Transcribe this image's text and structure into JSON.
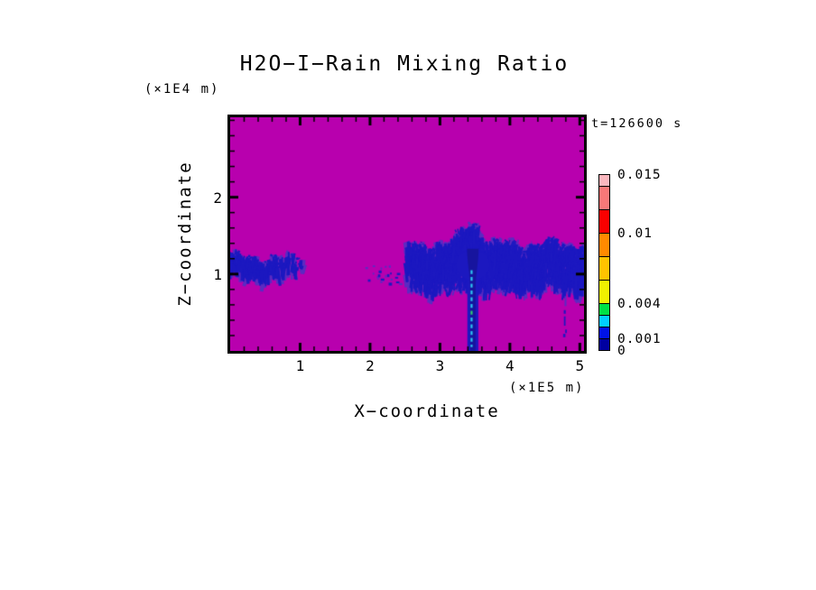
{
  "title": "H2O−I−Rain Mixing Ratio",
  "time_label": "t=126600 s",
  "axes": {
    "x": {
      "title": "X−coordinate",
      "unit": "(×1E5 m)",
      "min": 0,
      "max": 5.06,
      "major_ticks": [
        {
          "value": 1,
          "label": "1"
        },
        {
          "value": 2,
          "label": "2"
        },
        {
          "value": 3,
          "label": "3"
        },
        {
          "value": 4,
          "label": "4"
        },
        {
          "value": 5,
          "label": "5"
        }
      ],
      "minor_step": 0.2
    },
    "z": {
      "title": "Z−coordinate",
      "unit": "(×1E4 m)",
      "min": 0,
      "max": 3.04,
      "major_ticks": [
        {
          "value": 1,
          "label": "1"
        },
        {
          "value": 2,
          "label": "2"
        }
      ],
      "minor_step": 0.2
    }
  },
  "colorbar": {
    "min": 0,
    "max": 0.015,
    "levels": [
      0,
      0.001,
      0.002,
      0.003,
      0.004,
      0.006,
      0.008,
      0.01,
      0.012,
      0.014,
      0.015
    ],
    "colors_bottom_to_top": [
      "#0000A0",
      "#0013E8",
      "#00CFFF",
      "#00E045",
      "#F0F000",
      "#FFC300",
      "#FF8A00",
      "#FA0000",
      "#F87878",
      "#FBB7BE"
    ],
    "labels": [
      {
        "value": 0.015,
        "text": "0.015"
      },
      {
        "value": 0.01,
        "text": "0.01"
      },
      {
        "value": 0.004,
        "text": "0.004"
      },
      {
        "value": 0.001,
        "text": "0.001"
      },
      {
        "value": 0,
        "text": "0"
      }
    ]
  },
  "chart_data": {
    "type": "heatmap",
    "title": "H2O−I−Rain Mixing Ratio",
    "xlabel": "X−coordinate (×1E5 m)",
    "ylabel": "Z−coordinate (×1E4 m)",
    "time": "t=126600 s",
    "x_range": [
      0,
      5.06
    ],
    "z_range": [
      0,
      3.04
    ],
    "value_range": [
      0,
      0.015
    ],
    "levels": [
      0,
      0.001,
      0.002,
      0.003,
      0.004,
      0.006,
      0.008,
      0.01,
      0.012,
      0.014,
      0.015
    ],
    "level_colors": [
      "#0000A0",
      "#0013E8",
      "#00CFFF",
      "#00E045",
      "#F0F000",
      "#FFC300",
      "#FF8A00",
      "#FA0000",
      "#F87878",
      "#FBB7BE"
    ],
    "colors": {
      "background": "#B800AE",
      "blend": "#5B2BC2",
      "blue": "#1C18C0",
      "deep": "#17149E",
      "cyan": "#2CC6F0",
      "green": "#2FD070",
      "frame": "#000000"
    },
    "description": "Rain mixing ratio is ~0 (magenta background) everywhere except feathery bands near z≈1×1E4 m: a patch at x≈0–1×1E5 m, sparse specks at x≈1.9–2.5, a broad ragged band from x≈2.5 to the right edge with values ≲0.001–0.002 (blue), a dense precipitation shaft at x≈3.47 reaching the surface whose core holds ~0.002–0.003 (cyan dashes, one green ~0.003–0.004), and a thin broken virga streak at x≈4.79.",
    "features": [
      {
        "id": "left-feather-patch",
        "kind": "band",
        "seed": 7,
        "x0": 0.0,
        "x1": 1.05,
        "z_center": 1.03,
        "half_thick": 0.08,
        "fringe": 0.13,
        "density": 0.55,
        "taper_right": true
      },
      {
        "id": "lead-in-specks",
        "kind": "specks",
        "seed": 11,
        "x0": 1.92,
        "x1": 2.52,
        "z_center": 1.0,
        "spread": 0.12,
        "count": 24
      },
      {
        "id": "main-rain-band",
        "kind": "band",
        "seed": 23,
        "x0": 2.52,
        "x1": 5.06,
        "z_center": 1.03,
        "half_thick": 0.15,
        "fringe": 0.24,
        "density": 1.0,
        "bump_x": 3.45,
        "bump_amp": 0.3,
        "bump_sigma": 0.13
      },
      {
        "id": "precip-shaft",
        "kind": "shaft",
        "seed": 31,
        "x_center": 3.47,
        "top_z": 1.33,
        "top_half_w": 0.165,
        "neck_z": 0.82,
        "bottom_half_w": 0.078
      },
      {
        "id": "shaft-core-dashes",
        "kind": "core",
        "x": 3.452,
        "z0": 0.05,
        "z1": 1.05,
        "green_z": 0.5
      },
      {
        "id": "virga-streak",
        "kind": "streak",
        "seed": 41,
        "x": 4.79,
        "z0": 0.16,
        "z1": 0.8
      }
    ]
  }
}
